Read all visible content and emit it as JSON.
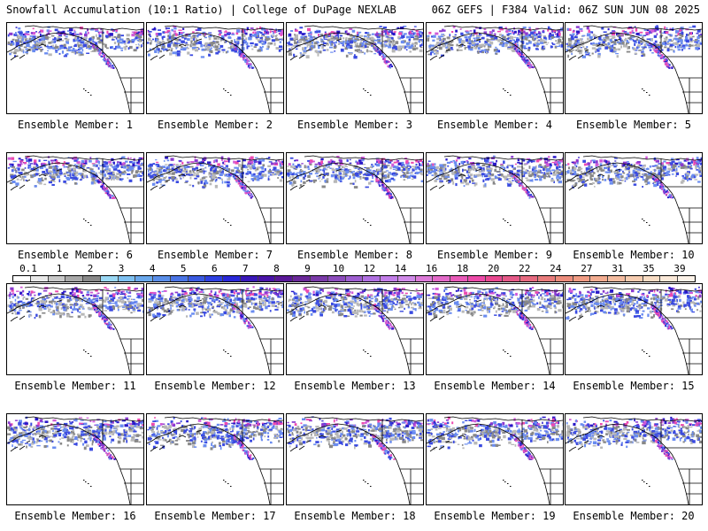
{
  "header": {
    "left_title": "Snowfall Accumulation (10:1 Ratio) | College of DuPage NEXLAB",
    "right_title": "06Z GEFS | F384 Valid: 06Z SUN JUN 08 2025"
  },
  "panels": [
    {
      "label": "Ensemble Member: 1"
    },
    {
      "label": "Ensemble Member: 2"
    },
    {
      "label": "Ensemble Member: 3"
    },
    {
      "label": "Ensemble Member: 4"
    },
    {
      "label": "Ensemble Member: 5"
    },
    {
      "label": "Ensemble Member: 6"
    },
    {
      "label": "Ensemble Member: 7"
    },
    {
      "label": "Ensemble Member: 8"
    },
    {
      "label": "Ensemble Member: 9"
    },
    {
      "label": "Ensemble Member: 10"
    },
    {
      "label": "Ensemble Member: 11"
    },
    {
      "label": "Ensemble Member: 12"
    },
    {
      "label": "Ensemble Member: 13"
    },
    {
      "label": "Ensemble Member: 14"
    },
    {
      "label": "Ensemble Member: 15"
    },
    {
      "label": "Ensemble Member: 16"
    },
    {
      "label": "Ensemble Member: 17"
    },
    {
      "label": "Ensemble Member: 18"
    },
    {
      "label": "Ensemble Member: 19"
    },
    {
      "label": "Ensemble Member: 20"
    }
  ],
  "colorbar": {
    "labels": [
      "0.1",
      "1",
      "2",
      "3",
      "4",
      "5",
      "6",
      "7",
      "8",
      "9",
      "10",
      "12",
      "14",
      "16",
      "18",
      "20",
      "22",
      "24",
      "27",
      "31",
      "35",
      "39"
    ],
    "colors": [
      "#ffffff",
      "#e8e8e8",
      "#c8c8c8",
      "#a8a8a8",
      "#888888",
      "#9ad8f4",
      "#7ec0f0",
      "#6aa8ec",
      "#5a8ee8",
      "#4a74e4",
      "#3a5ae0",
      "#2e40e0",
      "#2a28d8",
      "#3a18b8",
      "#4a14a8",
      "#5a1898",
      "#6a2898",
      "#7a3aa8",
      "#8c4cbc",
      "#9e5ed0",
      "#b070e0",
      "#c27ee8",
      "#d08ae8",
      "#dc7ad8",
      "#e26ac8",
      "#e85ab8",
      "#ec4aa8",
      "#e84890",
      "#e45a88",
      "#e66a80",
      "#e87c7c",
      "#ec8c7c",
      "#f09c84",
      "#f2ac90",
      "#f4bca0",
      "#f6ccb0",
      "#f8dcc4",
      "#fae8d8",
      "#fcf2e8"
    ]
  },
  "map_style": {
    "snow_colors": [
      "#b8b8b8",
      "#888888",
      "#6a8cf0",
      "#3a4ae0",
      "#2a18c8",
      "#8a3ad0",
      "#d05ad8",
      "#ec4ab0"
    ],
    "coast_color": "#000000"
  }
}
